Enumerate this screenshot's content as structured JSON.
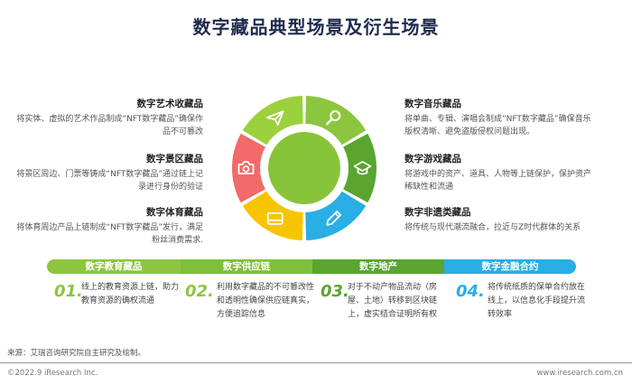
{
  "title": "数字藏品典型场景及衍生场景",
  "left_blocks": [
    {
      "heading": "数字艺术收藏品",
      "text": "将实体、虚拟的艺术作品制成“NFT数字藏品”确保作品不可篡改"
    },
    {
      "heading": "数字景区藏品",
      "text": "将景区周边、门票等铸成“NFT数字藏品”通过链上记录进行身份的验证"
    },
    {
      "heading": "数字体育藏品",
      "text": "将体育周边产品上链制成“NFT数字藏品”发行，满足粉丝消费需求."
    }
  ],
  "right_blocks": [
    {
      "heading": "数字音乐藏品",
      "text": "将单曲、专辑、演唱会制成“NFT数字藏品”确保音乐版权清晰、避免盗版侵权问题出现。"
    },
    {
      "heading": "数字游戏藏品",
      "text": "将游戏中的资产、道具、人物等上链保护，保护资产稀缺性和流通"
    },
    {
      "heading": "数字非遗类藏品",
      "text": "将传统与现代潮流融合，拉近与Z时代群体的关系"
    }
  ],
  "wheel_segments": [
    {
      "icon": "search-icon",
      "color": "#8cc63f"
    },
    {
      "icon": "graduation-cap-icon",
      "color": "#5aa52f"
    },
    {
      "icon": "pencil-icon",
      "color": "#29aee6"
    },
    {
      "icon": "card-icon",
      "color": "#f6c500"
    },
    {
      "icon": "camera-icon",
      "color": "#f26a6a"
    },
    {
      "icon": "paper-plane-icon",
      "color": "#9bd13c"
    }
  ],
  "bands": [
    {
      "label": "数字教育藏品",
      "color": "#8cc63f"
    },
    {
      "label": "数字供应链",
      "color": "#7fbf3a"
    },
    {
      "label": "数字地产",
      "color": "#5aa52f"
    },
    {
      "label": "数字金融合约",
      "color": "#29aee6"
    }
  ],
  "bottom_items": [
    {
      "num": "01.",
      "color": "#8cc63f",
      "text": "线上的教育资源上链，助力教育资源的确权流通"
    },
    {
      "num": "02.",
      "color": "#8cc63f",
      "text": "利用数字藏品的不可篡改性和透明性确保供应链真实，方便追踪信息"
    },
    {
      "num": "03.",
      "color": "#5aa52f",
      "text": "对于不动产物品流动（房屋、土地）转移到区块链上，虚实结合证明所有权"
    },
    {
      "num": "04.",
      "color": "#29aee6",
      "text": "将传统纸质的保单合约放在线上，以信息化手段提升流转效率"
    }
  ],
  "source": "来源：艾瑞咨询研究院自主研究及绘制。",
  "footer": {
    "left": "©2022.9 iResearch Inc.",
    "right": "www.iresearch.com.cn"
  }
}
